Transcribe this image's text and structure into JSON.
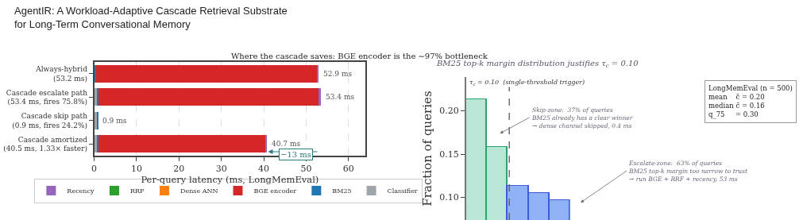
{
  "chart_data": [
    {
      "type": "bar",
      "orientation": "horizontal",
      "stacked": true,
      "title": "Where the cascade saves: BGE encoder is the ∼97% bottleneck",
      "xlabel": "Per-query latency (ms, LongMemEval)",
      "categories": [
        "Always-hybrid\n(53.2 ms)",
        "Cascade escalate path\n(53.4 ms, fires 75.8%)",
        "Cascade skip path\n(0.9 ms, fires 24.2%)",
        "Cascade amortized\n(40.5 ms, 1.33× faster)"
      ],
      "series": [
        {
          "name": "Classifier",
          "color": "#a0a4ab",
          "values": [
            0,
            0.5,
            0.5,
            0.5
          ]
        },
        {
          "name": "BM25",
          "color": "#1f77b4",
          "values": [
            0.4,
            0.4,
            0.4,
            0.4
          ]
        },
        {
          "name": "BGE encoder",
          "color": "#d62728",
          "values": [
            52.0,
            52.0,
            0,
            39.4
          ]
        },
        {
          "name": "Dense ANN",
          "color": "#ff7f0e",
          "values": [
            null,
            null,
            null,
            null
          ]
        },
        {
          "name": "RRF",
          "color": "#2ca02c",
          "values": [
            null,
            null,
            null,
            null
          ]
        },
        {
          "name": "Recency",
          "color": "#9467bd",
          "values": [
            0.5,
            0.5,
            0,
            0.4
          ]
        }
      ],
      "totals": [
        "52.9 ms",
        "53.4 ms",
        "0.9 ms",
        "40.7 ms"
      ],
      "xlim": [
        0,
        64
      ],
      "xticks": [
        0,
        10,
        20,
        30,
        40,
        50,
        60
      ],
      "grid": "x",
      "legend": "bottom",
      "annotations": [
        "AgentIR: A Workload-Adaptive Cascade Retrieval Substrate\nfor Long-Term Conversational Memory",
        {
          "text": "−13 ms",
          "x": 40.7,
          "y": "Cascade amortized\n(40.5 ms, 1.33× faster)"
        }
      ]
    },
    {
      "type": "bar",
      "title": "BM25 top-k margin distribution justifies τ$_{c}$ = 0.10",
      "ylabel": "Fraction of queries",
      "categories": [
        null,
        null,
        null,
        null,
        null
      ],
      "values": [
        0.213,
        0.158,
        0.113,
        0.105,
        0.097
      ],
      "colors": [
        "#b9e6d6",
        "#b9e6d6",
        "#8fb2f7",
        "#8fb2f7",
        "#8fb2f7"
      ],
      "ylim": [
        0.074,
        0.239
      ],
      "yticks": [
        {
          "value": 0.1,
          "label": "0.10"
        },
        {
          "value": 0.15,
          "label": "0.15"
        },
        {
          "value": 0.2,
          "label": "0.20"
        }
      ],
      "tick_labels": "y",
      "annotations": [
        "τ$_{c}$ = 0.10  (single-threshold trigger)",
        "Skip-zone:  37% of queries\nBM25 already has a clear winner\n→ dense channel skipped, 0.4 ms",
        "Escalate-zone:  63% of queries\nBM25 top-k margin too narrow to trust\n→ run BGE + RRF + recency, 53 ms",
        "LongMemEval (n = 500)\nmean    c̄ = 0.20\nmedian c̄ = 0.16\nq_75     = 0.30"
      ]
    }
  ]
}
